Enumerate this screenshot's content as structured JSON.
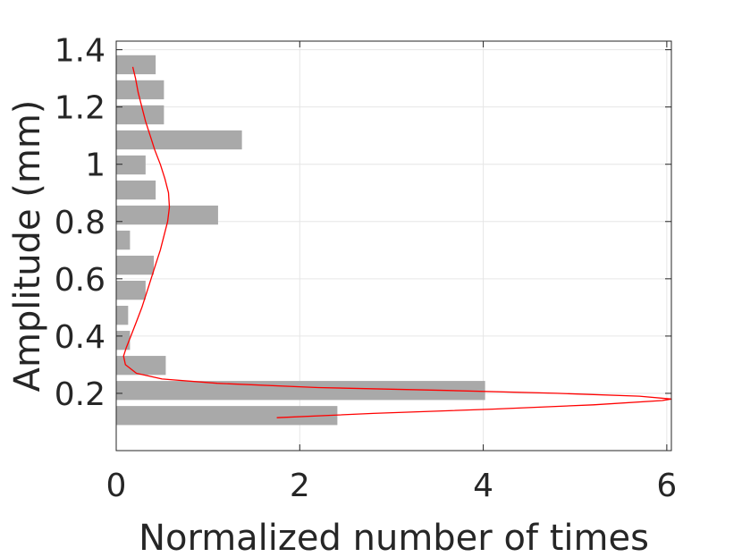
{
  "chart_data": {
    "type": "bar",
    "orientation": "horizontal",
    "xlabel": "Normalized number of times",
    "ylabel": "Amplitude (mm)",
    "xlim": [
      0,
      6.05
    ],
    "ylim": [
      0,
      1.43
    ],
    "xticks": [
      0,
      2,
      4,
      6
    ],
    "yticks": [
      0.2,
      0.4,
      0.6,
      0.8,
      1,
      1.2,
      1.4
    ],
    "xtick_labels": [
      "0",
      "2",
      "4",
      "6"
    ],
    "ytick_labels": [
      "0.2",
      "0.4",
      "0.6",
      "0.8",
      "1",
      "1.2",
      "1.4"
    ],
    "grid": true,
    "bar_color": "#a9a9a9",
    "curve_color": "#ff0000",
    "bin_width": 0.0875,
    "bins": [
      {
        "center": 0.1225,
        "value": 2.41
      },
      {
        "center": 0.21,
        "value": 4.02
      },
      {
        "center": 0.2975,
        "value": 0.54
      },
      {
        "center": 0.385,
        "value": 0.15
      },
      {
        "center": 0.4725,
        "value": 0.13
      },
      {
        "center": 0.56,
        "value": 0.32
      },
      {
        "center": 0.6475,
        "value": 0.41
      },
      {
        "center": 0.735,
        "value": 0.15
      },
      {
        "center": 0.8225,
        "value": 1.11
      },
      {
        "center": 0.91,
        "value": 0.43
      },
      {
        "center": 0.9975,
        "value": 0.32
      },
      {
        "center": 1.085,
        "value": 1.37
      },
      {
        "center": 1.1725,
        "value": 0.52
      },
      {
        "center": 1.26,
        "value": 0.52
      },
      {
        "center": 1.3475,
        "value": 0.43
      }
    ],
    "fit_curve": [
      {
        "amplitude": 0.115,
        "value": 1.75
      },
      {
        "amplitude": 0.13,
        "value": 2.8
      },
      {
        "amplitude": 0.145,
        "value": 4.1
      },
      {
        "amplitude": 0.16,
        "value": 5.2
      },
      {
        "amplitude": 0.175,
        "value": 5.95
      },
      {
        "amplitude": 0.18,
        "value": 6.05
      },
      {
        "amplitude": 0.19,
        "value": 5.7
      },
      {
        "amplitude": 0.2,
        "value": 4.8
      },
      {
        "amplitude": 0.21,
        "value": 3.6
      },
      {
        "amplitude": 0.22,
        "value": 2.2
      },
      {
        "amplitude": 0.235,
        "value": 1.1
      },
      {
        "amplitude": 0.25,
        "value": 0.5
      },
      {
        "amplitude": 0.27,
        "value": 0.22
      },
      {
        "amplitude": 0.3,
        "value": 0.1
      },
      {
        "amplitude": 0.33,
        "value": 0.08
      },
      {
        "amplitude": 0.36,
        "value": 0.11
      },
      {
        "amplitude": 0.4,
        "value": 0.16
      },
      {
        "amplitude": 0.45,
        "value": 0.22
      },
      {
        "amplitude": 0.5,
        "value": 0.28
      },
      {
        "amplitude": 0.55,
        "value": 0.33
      },
      {
        "amplitude": 0.6,
        "value": 0.38
      },
      {
        "amplitude": 0.65,
        "value": 0.43
      },
      {
        "amplitude": 0.7,
        "value": 0.48
      },
      {
        "amplitude": 0.75,
        "value": 0.52
      },
      {
        "amplitude": 0.8,
        "value": 0.56
      },
      {
        "amplitude": 0.85,
        "value": 0.58
      },
      {
        "amplitude": 0.9,
        "value": 0.57
      },
      {
        "amplitude": 0.95,
        "value": 0.53
      },
      {
        "amplitude": 1.0,
        "value": 0.48
      },
      {
        "amplitude": 1.05,
        "value": 0.42
      },
      {
        "amplitude": 1.1,
        "value": 0.37
      },
      {
        "amplitude": 1.15,
        "value": 0.32
      },
      {
        "amplitude": 1.2,
        "value": 0.28
      },
      {
        "amplitude": 1.25,
        "value": 0.24
      },
      {
        "amplitude": 1.3,
        "value": 0.21
      },
      {
        "amplitude": 1.34,
        "value": 0.18
      }
    ]
  }
}
